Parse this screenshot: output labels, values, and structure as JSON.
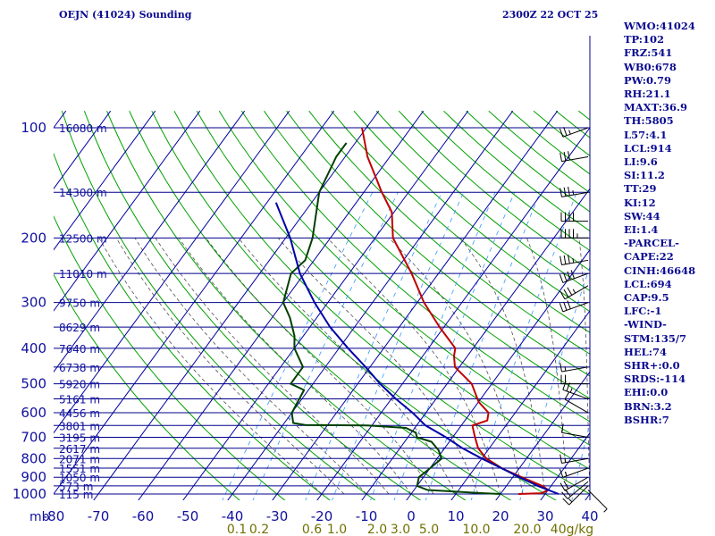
{
  "chart_data": {
    "type": "line",
    "title": "OEJN (41024) Sounding",
    "time_label": "2300Z 22 OCT 25",
    "x_axis": {
      "unit_label": "mb",
      "ticks": [
        -80,
        -70,
        -60,
        -50,
        -40,
        -30,
        -20,
        -10,
        0,
        10,
        20,
        30,
        40
      ],
      "range": [
        -80,
        40
      ]
    },
    "y_axis": {
      "scale": "log-pressure",
      "range": [
        1000,
        100
      ],
      "ticks": [
        100,
        200,
        300,
        400,
        500,
        600,
        700,
        800,
        900,
        1000
      ]
    },
    "height_labels": [
      {
        "p": 100,
        "label": "16080 m"
      },
      {
        "p": 150,
        "label": "14300 m"
      },
      {
        "p": 200,
        "label": "12500 m"
      },
      {
        "p": 250,
        "label": "11010 m"
      },
      {
        "p": 300,
        "label": "9750 m"
      },
      {
        "p": 350,
        "label": "8629 m"
      },
      {
        "p": 400,
        "label": "7640 m"
      },
      {
        "p": 450,
        "label": "6738 m"
      },
      {
        "p": 500,
        "label": "5920 m"
      },
      {
        "p": 550,
        "label": "5161 m"
      },
      {
        "p": 600,
        "label": "4456 m"
      },
      {
        "p": 650,
        "label": "3801 m"
      },
      {
        "p": 700,
        "label": "3195 m"
      },
      {
        "p": 750,
        "label": "2617 m"
      },
      {
        "p": 800,
        "label": "2071 m"
      },
      {
        "p": 850,
        "label": "1551 m"
      },
      {
        "p": 900,
        "label": "1050 m"
      },
      {
        "p": 950,
        "label": "573 m"
      },
      {
        "p": 1000,
        "label": "115 m"
      }
    ],
    "mixing_ratio_labels": [
      "0.1",
      "0.2",
      "0.6",
      "1.0",
      "2.0",
      "3.0",
      "5.0",
      "10.0",
      "20.0",
      "40g/kg"
    ],
    "series": [
      {
        "name": "temperature",
        "color": "#c00000",
        "points": [
          [
            1000,
            24
          ],
          [
            995,
            29
          ],
          [
            975,
            30
          ],
          [
            950,
            28
          ],
          [
            925,
            25
          ],
          [
            900,
            22
          ],
          [
            850,
            16
          ],
          [
            800,
            11
          ],
          [
            750,
            7.5
          ],
          [
            700,
            5
          ],
          [
            670,
            3.5
          ],
          [
            650,
            2.5
          ],
          [
            630,
            5
          ],
          [
            600,
            4
          ],
          [
            560,
            0
          ],
          [
            500,
            -4.5
          ],
          [
            450,
            -11
          ],
          [
            420,
            -13
          ],
          [
            400,
            -14
          ],
          [
            350,
            -21
          ],
          [
            300,
            -28.5
          ],
          [
            250,
            -36
          ],
          [
            200,
            -46
          ],
          [
            170,
            -50.5
          ],
          [
            150,
            -56
          ],
          [
            120,
            -65
          ],
          [
            100,
            -71
          ]
        ]
      },
      {
        "name": "dewpoint",
        "color": "#004000",
        "points": [
          [
            1000,
            20
          ],
          [
            995,
            16
          ],
          [
            975,
            3
          ],
          [
            950,
            0
          ],
          [
            900,
            -1
          ],
          [
            850,
            0
          ],
          [
            800,
            1
          ],
          [
            760,
            -1
          ],
          [
            720,
            -4
          ],
          [
            700,
            -8
          ],
          [
            680,
            -9
          ],
          [
            660,
            -12
          ],
          [
            650,
            -21
          ],
          [
            648,
            -35
          ],
          [
            640,
            -38
          ],
          [
            620,
            -39
          ],
          [
            600,
            -40
          ],
          [
            520,
            -41
          ],
          [
            500,
            -45
          ],
          [
            480,
            -45
          ],
          [
            450,
            -45
          ],
          [
            400,
            -50
          ],
          [
            370,
            -52
          ],
          [
            330,
            -56
          ],
          [
            300,
            -60
          ],
          [
            250,
            -63
          ],
          [
            230,
            -62
          ],
          [
            200,
            -64
          ],
          [
            150,
            -70
          ],
          [
            120,
            -72
          ],
          [
            110,
            -72
          ]
        ]
      },
      {
        "name": "parcel",
        "color": "#0000a8",
        "points": [
          [
            1000,
            33
          ],
          [
            950,
            27
          ],
          [
            900,
            21.5
          ],
          [
            850,
            16
          ],
          [
            800,
            10
          ],
          [
            750,
            4
          ],
          [
            700,
            -1.5
          ],
          [
            650,
            -8
          ],
          [
            600,
            -13
          ],
          [
            550,
            -19
          ],
          [
            500,
            -25
          ],
          [
            450,
            -31
          ],
          [
            400,
            -38
          ],
          [
            350,
            -45.5
          ],
          [
            300,
            -53
          ],
          [
            250,
            -61
          ],
          [
            200,
            -69
          ],
          [
            160,
            -78
          ]
        ]
      }
    ],
    "winds": [
      {
        "p": 975,
        "dir": 135,
        "spd": 7
      },
      {
        "p": 950,
        "dir": 225,
        "spd": 15
      },
      {
        "p": 925,
        "dir": 230,
        "spd": 20
      },
      {
        "p": 900,
        "dir": 240,
        "spd": 20
      },
      {
        "p": 850,
        "dir": 250,
        "spd": 15
      },
      {
        "p": 800,
        "dir": 260,
        "spd": 15
      },
      {
        "p": 700,
        "dir": 280,
        "spd": 10
      },
      {
        "p": 600,
        "dir": 300,
        "spd": 10
      },
      {
        "p": 550,
        "dir": 290,
        "spd": 25
      },
      {
        "p": 500,
        "dir": 270,
        "spd": 20
      },
      {
        "p": 450,
        "dir": 260,
        "spd": 15
      },
      {
        "p": 300,
        "dir": 250,
        "spd": 30
      },
      {
        "p": 270,
        "dir": 240,
        "spd": 35
      },
      {
        "p": 250,
        "dir": 250,
        "spd": 40
      },
      {
        "p": 230,
        "dir": 260,
        "spd": 35
      },
      {
        "p": 200,
        "dir": 270,
        "spd": 45
      },
      {
        "p": 180,
        "dir": 270,
        "spd": 40
      },
      {
        "p": 150,
        "dir": 260,
        "spd": 35
      },
      {
        "p": 120,
        "dir": 260,
        "spd": 30
      },
      {
        "p": 100,
        "dir": 250,
        "spd": 25
      }
    ]
  },
  "indices": [
    "WMO:41024",
    "TP:102",
    "FRZ:541",
    "WB0:678",
    "PW:0.79",
    "RH:21.1",
    "MAXT:36.9",
    "TH:5805",
    "L57:4.1",
    "LCL:914",
    "LI:9.6",
    "SI:11.2",
    "TT:29",
    "KI:12",
    "SW:44",
    "EI:1.4",
    "-PARCEL-",
    "CAPE:22",
    "CINH:46648",
    "LCL:694",
    "CAP:9.5",
    "LFC:-1",
    "-WIND-",
    "STM:135/7",
    "HEL:74",
    "SHR+:0.0",
    "SRDS:-114",
    "EHI:0.0",
    "BRN:3.2",
    "BSHR:7"
  ],
  "colors": {
    "frame": "#00008b",
    "isotherm": "#0000a0",
    "dry_adiabat": "#00a000",
    "moist_adiabat": "#505050",
    "mixing_ratio": "#3399ff",
    "axis_text": "#1010a0",
    "mix_text": "#707000",
    "panel_text": "#0a0a90"
  }
}
